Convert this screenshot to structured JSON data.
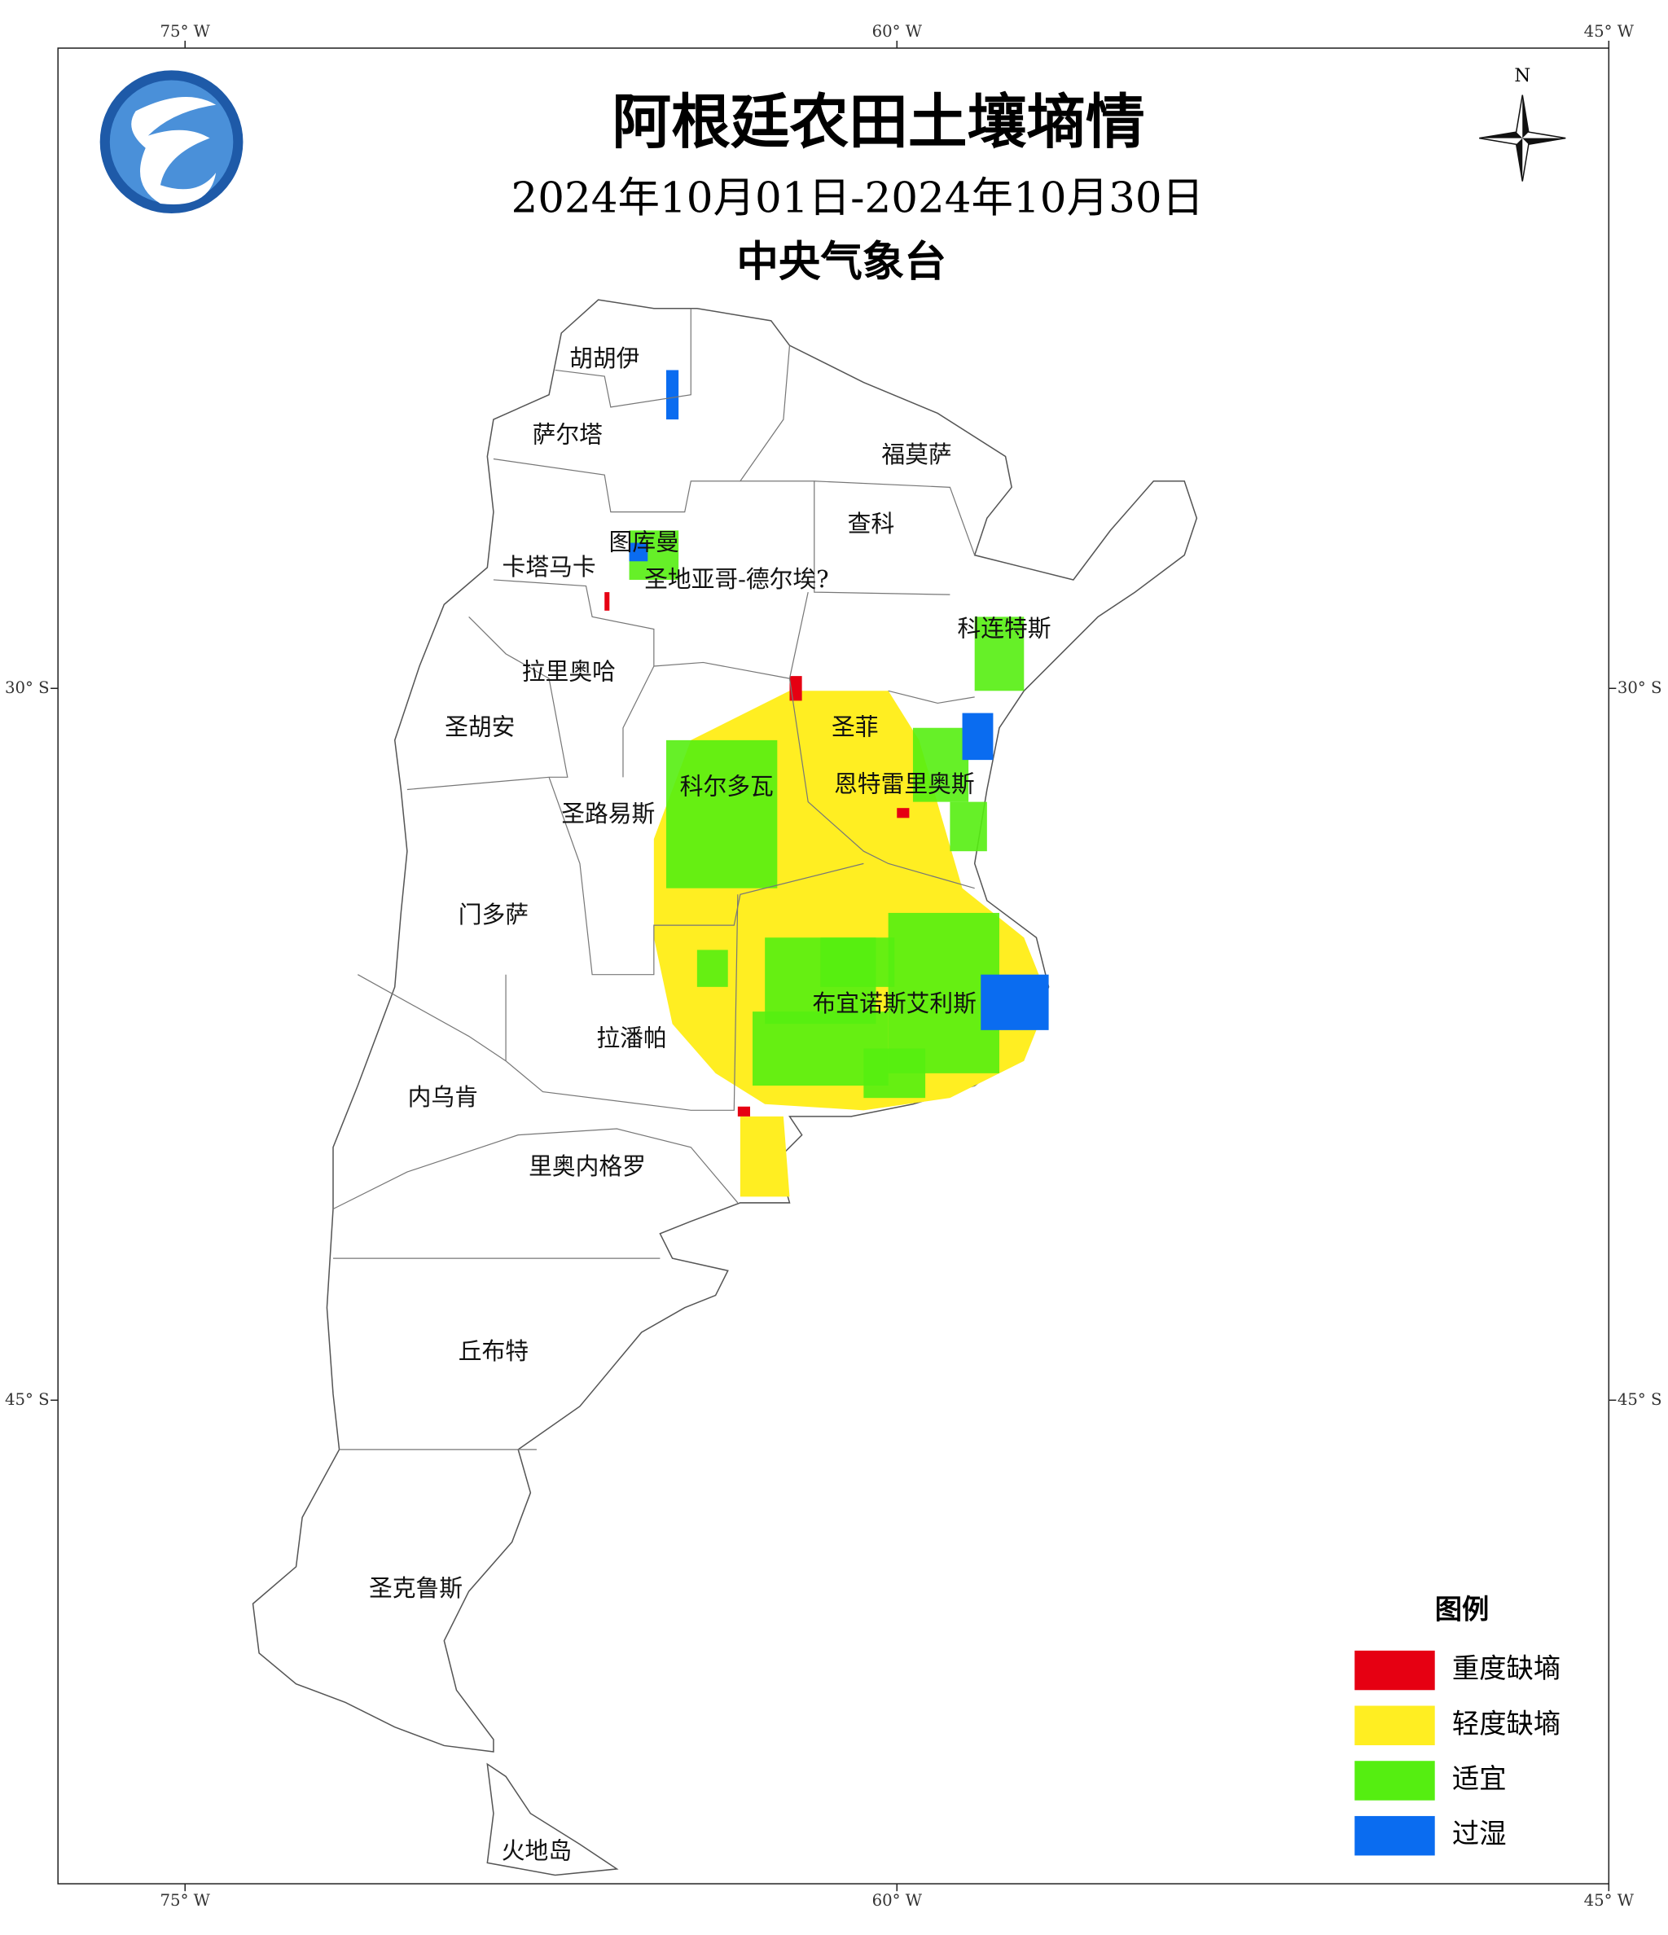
{
  "title": "阿根廷农田土壤墒情",
  "subtitle": "2024年10月01日-2024年10月30日",
  "agency": "中央气象台",
  "north": "N",
  "lon_labels": [
    "75° W",
    "60° W",
    "45° W"
  ],
  "lat_labels": [
    "30° S",
    "45° S"
  ],
  "regions": [
    {
      "label": "胡胡伊"
    },
    {
      "label": "萨尔塔"
    },
    {
      "label": "福莫萨"
    },
    {
      "label": "图库曼"
    },
    {
      "label": "查科"
    },
    {
      "label": "卡塔马卡"
    },
    {
      "label": "圣地亚哥-德尔埃?"
    },
    {
      "label": "科连特斯"
    },
    {
      "label": "拉里奥哈"
    },
    {
      "label": "圣胡安"
    },
    {
      "label": "圣菲"
    },
    {
      "label": "科尔多瓦"
    },
    {
      "label": "恩特雷里奥斯"
    },
    {
      "label": "圣路易斯"
    },
    {
      "label": "门多萨"
    },
    {
      "label": "布宜诺斯艾利斯"
    },
    {
      "label": "拉潘帕"
    },
    {
      "label": "内乌肯"
    },
    {
      "label": "里奥内格罗"
    },
    {
      "label": "丘布特"
    },
    {
      "label": "圣克鲁斯"
    },
    {
      "label": "火地岛"
    }
  ],
  "legend": {
    "title": "图例",
    "items": [
      {
        "label": "重度缺墒",
        "color": "#e60012"
      },
      {
        "label": "轻度缺墒",
        "color": "#ffee22"
      },
      {
        "label": "适宜",
        "color": "#55ee11"
      },
      {
        "label": "过湿",
        "color": "#0a6cf0"
      }
    ]
  }
}
